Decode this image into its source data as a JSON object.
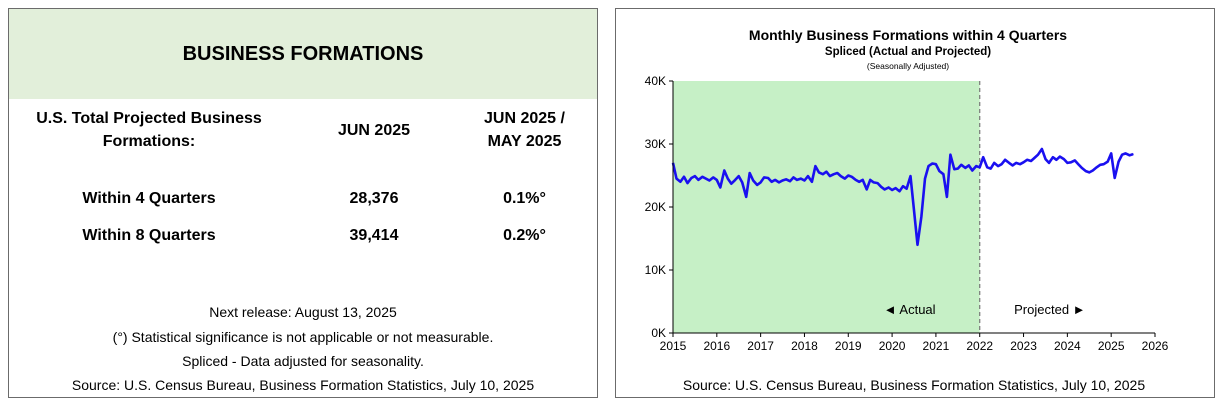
{
  "table": {
    "title": "BUSINESS FORMATIONS",
    "header_label": [
      "U.S. Total Projected Business",
      "Formations:"
    ],
    "col_jun": "JUN 2025",
    "col_change": [
      "JUN 2025 /",
      "MAY 2025"
    ],
    "rows": [
      {
        "label": "Within 4 Quarters",
        "value": "28,376",
        "change": "0.1%°"
      },
      {
        "label": "Within 8 Quarters",
        "value": "39,414",
        "change": "0.2%°"
      }
    ],
    "next_release": "Next release: August 13, 2025",
    "note_significance": "(°) Statistical significance is not applicable or not measurable.",
    "note_spliced": "Spliced - Data adjusted for seasonality.",
    "source": "Source: U.S. Census Bureau, Business Formation Statistics, July 10, 2025"
  },
  "colors": {
    "header_bg": "#e2efda",
    "actual_shade": "#c6f0c6",
    "line": "#1a10f0",
    "axis": "#000000"
  },
  "chart_data": {
    "type": "line",
    "title": "Monthly Business Formations within 4 Quarters",
    "subtitle": "Spliced (Actual and Projected)",
    "note": "(Seasonally Adjusted)",
    "xlim": [
      2015,
      2026
    ],
    "ylim": [
      0,
      40000
    ],
    "x_ticks": [
      2015,
      2016,
      2017,
      2018,
      2019,
      2020,
      2021,
      2022,
      2023,
      2024,
      2025,
      2026
    ],
    "y_ticks": [
      0,
      10000,
      20000,
      30000,
      40000
    ],
    "y_tick_labels": [
      "0K",
      "10K",
      "20K",
      "30K",
      "40K"
    ],
    "split_x": 2022,
    "actual_label": "◄ Actual",
    "projected_label": "Projected ►",
    "source": "Source: U.S. Census Bureau, Business Formation Statistics, July 10, 2025",
    "series": [
      {
        "name": "Monthly Business Formations within 4 Quarters",
        "points": [
          [
            2015.0,
            27000
          ],
          [
            2015.08,
            24500
          ],
          [
            2015.17,
            24000
          ],
          [
            2015.25,
            24800
          ],
          [
            2015.33,
            23800
          ],
          [
            2015.42,
            24600
          ],
          [
            2015.5,
            24900
          ],
          [
            2015.58,
            24300
          ],
          [
            2015.67,
            24800
          ],
          [
            2015.75,
            24500
          ],
          [
            2015.83,
            24200
          ],
          [
            2015.92,
            24700
          ],
          [
            2016.0,
            24300
          ],
          [
            2016.08,
            23100
          ],
          [
            2016.17,
            25800
          ],
          [
            2016.25,
            24500
          ],
          [
            2016.33,
            23700
          ],
          [
            2016.42,
            24300
          ],
          [
            2016.5,
            24900
          ],
          [
            2016.58,
            23900
          ],
          [
            2016.67,
            21600
          ],
          [
            2016.75,
            25400
          ],
          [
            2016.83,
            24200
          ],
          [
            2016.92,
            23500
          ],
          [
            2017.0,
            23900
          ],
          [
            2017.08,
            24700
          ],
          [
            2017.17,
            24600
          ],
          [
            2017.25,
            24000
          ],
          [
            2017.33,
            24300
          ],
          [
            2017.42,
            23900
          ],
          [
            2017.5,
            24200
          ],
          [
            2017.58,
            24400
          ],
          [
            2017.67,
            24100
          ],
          [
            2017.75,
            24700
          ],
          [
            2017.83,
            24300
          ],
          [
            2017.92,
            24500
          ],
          [
            2018.0,
            24200
          ],
          [
            2018.08,
            24900
          ],
          [
            2018.17,
            24000
          ],
          [
            2018.25,
            26500
          ],
          [
            2018.33,
            25500
          ],
          [
            2018.42,
            25200
          ],
          [
            2018.5,
            25600
          ],
          [
            2018.58,
            24900
          ],
          [
            2018.67,
            25200
          ],
          [
            2018.75,
            25400
          ],
          [
            2018.83,
            24900
          ],
          [
            2018.92,
            24500
          ],
          [
            2019.0,
            25000
          ],
          [
            2019.08,
            24800
          ],
          [
            2019.17,
            24300
          ],
          [
            2019.25,
            24000
          ],
          [
            2019.33,
            24300
          ],
          [
            2019.42,
            22800
          ],
          [
            2019.5,
            24300
          ],
          [
            2019.58,
            23900
          ],
          [
            2019.67,
            23800
          ],
          [
            2019.75,
            23200
          ],
          [
            2019.83,
            22800
          ],
          [
            2019.92,
            23100
          ],
          [
            2020.0,
            22700
          ],
          [
            2020.08,
            23000
          ],
          [
            2020.17,
            22500
          ],
          [
            2020.25,
            23300
          ],
          [
            2020.33,
            22900
          ],
          [
            2020.42,
            24900
          ],
          [
            2020.5,
            19500
          ],
          [
            2020.58,
            14000
          ],
          [
            2020.67,
            18500
          ],
          [
            2020.75,
            24500
          ],
          [
            2020.83,
            26500
          ],
          [
            2020.92,
            26900
          ],
          [
            2021.0,
            26800
          ],
          [
            2021.08,
            25700
          ],
          [
            2021.17,
            25200
          ],
          [
            2021.25,
            21600
          ],
          [
            2021.33,
            28300
          ],
          [
            2021.42,
            26000
          ],
          [
            2021.5,
            26100
          ],
          [
            2021.58,
            26700
          ],
          [
            2021.67,
            26200
          ],
          [
            2021.75,
            26600
          ],
          [
            2021.83,
            25800
          ],
          [
            2021.92,
            26500
          ],
          [
            2022.0,
            26300
          ],
          [
            2022.08,
            27900
          ],
          [
            2022.17,
            26300
          ],
          [
            2022.25,
            26100
          ],
          [
            2022.33,
            27000
          ],
          [
            2022.42,
            26500
          ],
          [
            2022.5,
            26800
          ],
          [
            2022.58,
            27500
          ],
          [
            2022.67,
            27000
          ],
          [
            2022.75,
            26600
          ],
          [
            2022.83,
            27000
          ],
          [
            2022.92,
            26800
          ],
          [
            2023.0,
            27100
          ],
          [
            2023.08,
            27500
          ],
          [
            2023.17,
            27300
          ],
          [
            2023.25,
            27800
          ],
          [
            2023.33,
            28300
          ],
          [
            2023.42,
            29200
          ],
          [
            2023.5,
            27600
          ],
          [
            2023.58,
            27000
          ],
          [
            2023.67,
            27900
          ],
          [
            2023.75,
            27500
          ],
          [
            2023.83,
            28000
          ],
          [
            2023.92,
            27600
          ],
          [
            2024.0,
            27000
          ],
          [
            2024.08,
            27100
          ],
          [
            2024.17,
            27400
          ],
          [
            2024.25,
            26800
          ],
          [
            2024.33,
            26200
          ],
          [
            2024.42,
            25700
          ],
          [
            2024.5,
            25500
          ],
          [
            2024.58,
            25800
          ],
          [
            2024.67,
            26300
          ],
          [
            2024.75,
            26700
          ],
          [
            2024.83,
            26800
          ],
          [
            2024.92,
            27200
          ],
          [
            2025.0,
            28500
          ],
          [
            2025.08,
            24600
          ],
          [
            2025.17,
            27200
          ],
          [
            2025.25,
            28300
          ],
          [
            2025.33,
            28500
          ],
          [
            2025.42,
            28200
          ],
          [
            2025.5,
            28400
          ]
        ]
      }
    ]
  }
}
